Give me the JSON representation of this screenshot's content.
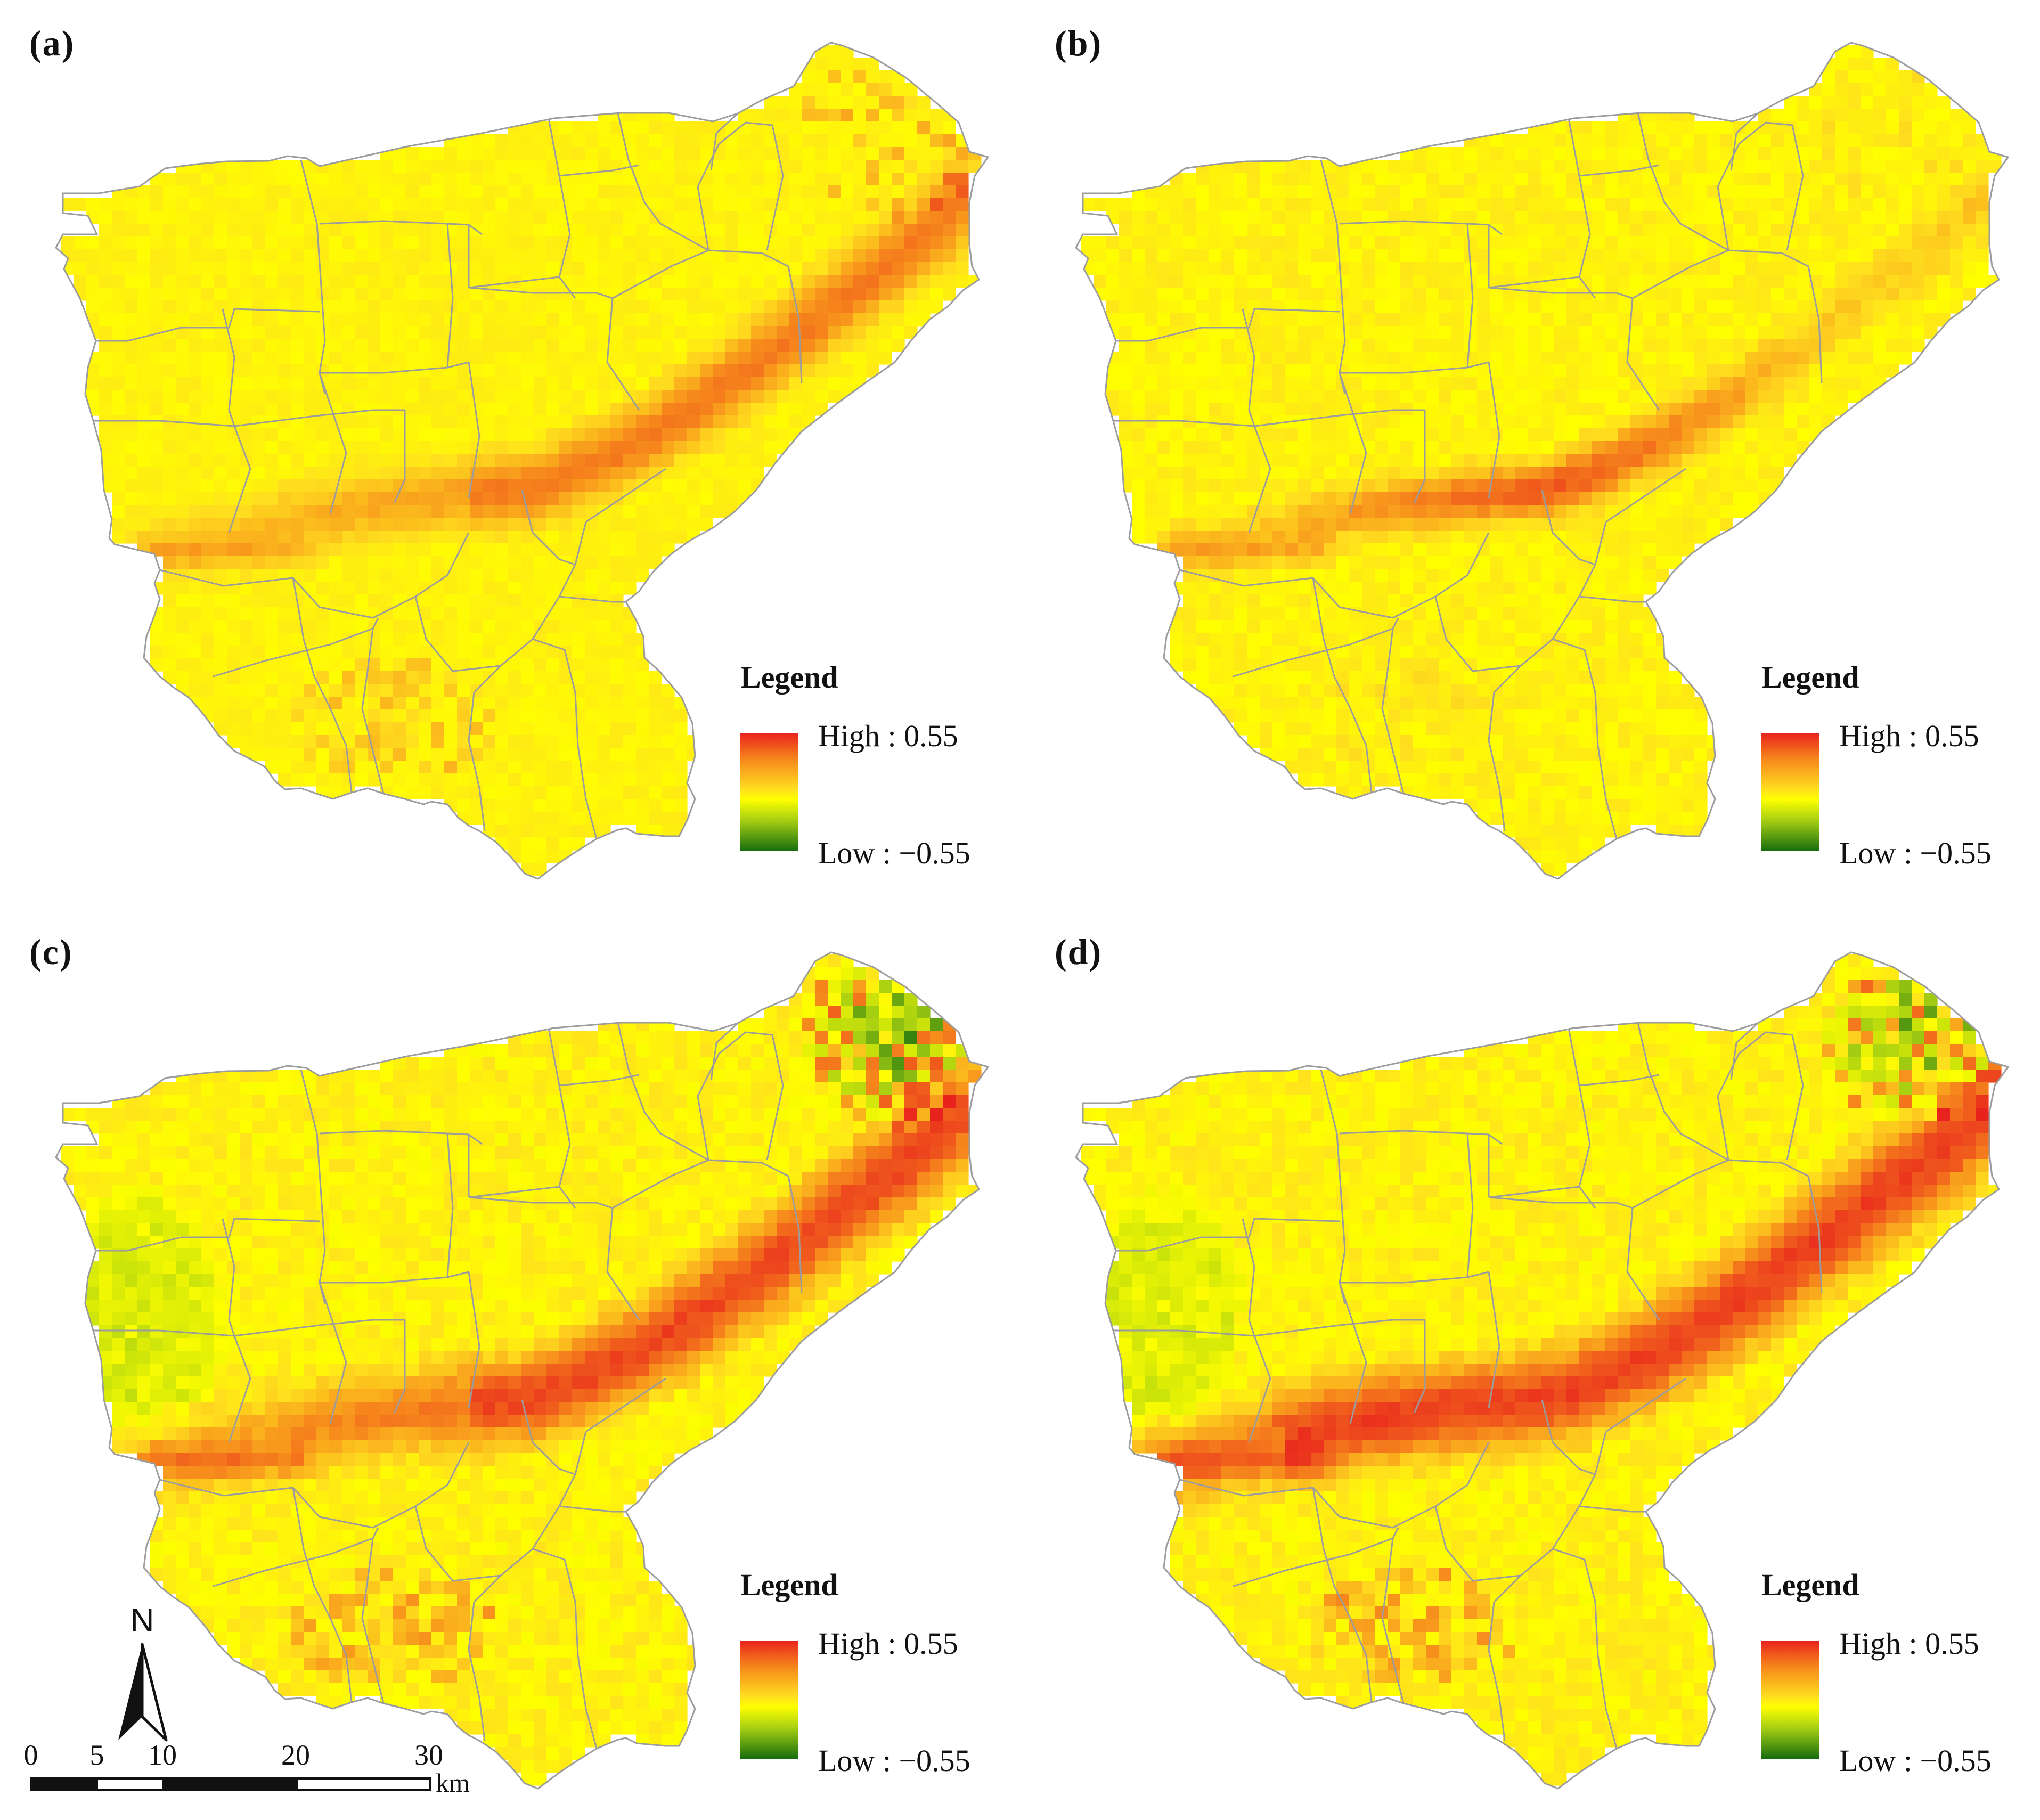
{
  "figure": {
    "panels": [
      {
        "id": "a",
        "label": "(a)",
        "seed": 11,
        "noise": 0.05,
        "road_strength": 0.28,
        "road_width": 0.75,
        "road_segment": "east",
        "ne_green": 0.0,
        "ne_orange": 0.2,
        "west_green": 0.0,
        "south_orange": 0.09,
        "sw_road": 0.1
      },
      {
        "id": "b",
        "label": "(b)",
        "seed": 23,
        "noise": 0.07,
        "road_strength": 0.38,
        "road_width": 0.6,
        "road_segment": "central",
        "ne_green": 0.0,
        "ne_orange": 0.04,
        "west_green": 0.0,
        "south_orange": 0.03,
        "sw_road": 0.12
      },
      {
        "id": "c",
        "label": "(c)",
        "seed": 37,
        "noise": 0.09,
        "road_strength": 0.42,
        "road_width": 0.9,
        "road_segment": "east",
        "ne_green": 0.42,
        "ne_orange": 0.34,
        "west_green": 0.13,
        "south_orange": 0.14,
        "sw_road": 0.16
      },
      {
        "id": "d",
        "label": "(d)",
        "seed": 53,
        "noise": 0.09,
        "road_strength": 0.44,
        "road_width": 0.95,
        "road_segment": "full",
        "ne_green": 0.38,
        "ne_orange": 0.34,
        "west_green": 0.12,
        "south_orange": 0.16,
        "sw_road": 0.16
      }
    ],
    "legend": {
      "title": "Legend",
      "high": "High : 0.55",
      "low": "Low : −0.55",
      "max": 0.55,
      "min": -0.55
    },
    "scale_bar": {
      "ticks": [
        "0",
        "5",
        "10",
        "20",
        "30"
      ],
      "unit": "km"
    },
    "north_arrow": {
      "label": "N"
    },
    "colors": {
      "high": "#e8231d",
      "mid_high": "#f6861c",
      "mid": "#ffff00",
      "mid_low": "#a6cf12",
      "low": "#166d0e",
      "boundary": "#9c9c9c",
      "background": "#ffffff"
    }
  }
}
